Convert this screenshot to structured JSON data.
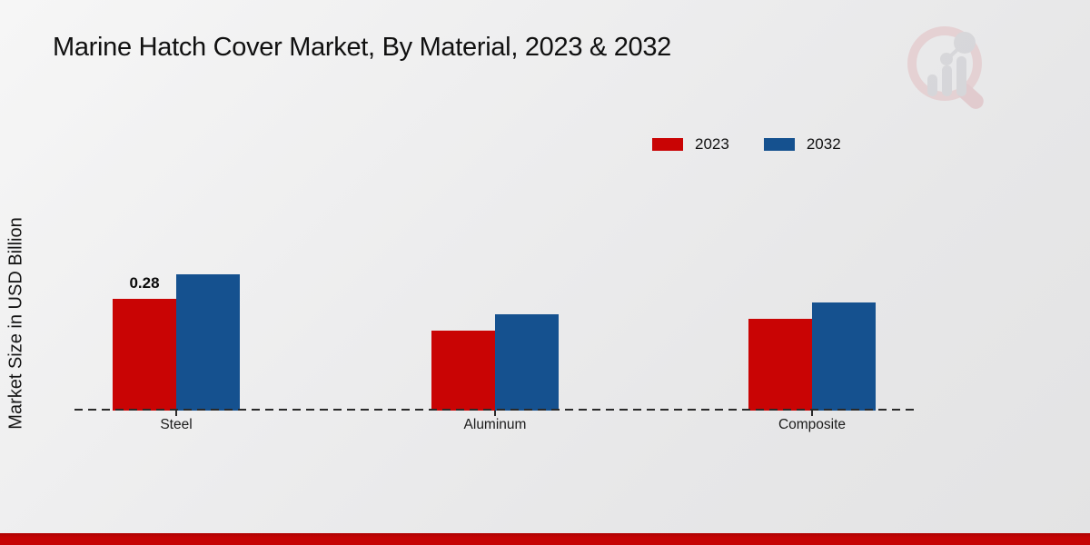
{
  "page": {
    "title": "Marine Hatch Cover Market, By Material, 2023 & 2032",
    "y_axis_label": "Market Size in USD Billion"
  },
  "legend": {
    "items": [
      {
        "label": "2023",
        "color": "#c90404"
      },
      {
        "label": "2032",
        "color": "#15518f"
      }
    ]
  },
  "chart_data": {
    "type": "bar",
    "title": "Marine Hatch Cover Market, By Material, 2023 & 2032",
    "ylabel": "Market Size in USD Billion",
    "xlabel": "",
    "categories": [
      "Steel",
      "Aluminum",
      "Composite"
    ],
    "series": [
      {
        "name": "2023",
        "color": "#c90404",
        "values": [
          0.28,
          0.2,
          0.23
        ]
      },
      {
        "name": "2032",
        "color": "#15518f",
        "values": [
          0.34,
          0.24,
          0.27
        ]
      }
    ],
    "bar_labels": [
      {
        "category": "Steel",
        "series": "2023",
        "text": "0.28"
      }
    ],
    "ylim": [
      0,
      0.4
    ],
    "grid": false,
    "legend_position": "top-right",
    "baseline_style": "dashed"
  },
  "icons": {
    "watermark": "magnifier-bar-chart-logo"
  },
  "colors": {
    "accent_red": "#c90404",
    "accent_blue": "#15518f",
    "footer_band": "#c50404",
    "axis": "#2a2a2a",
    "background": "#ececed"
  }
}
